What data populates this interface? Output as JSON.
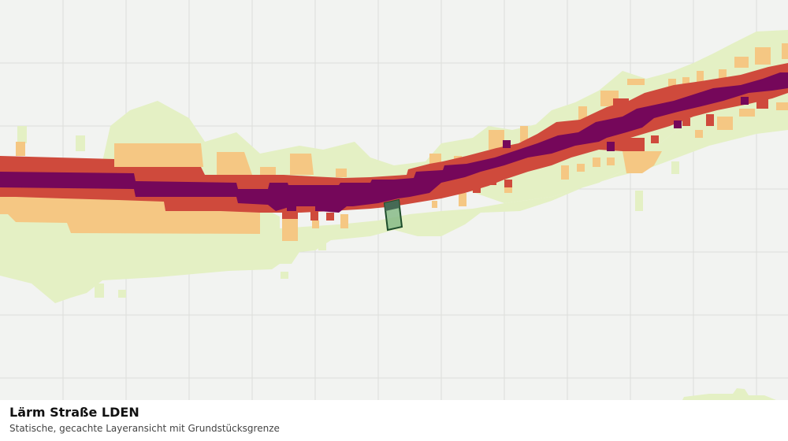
{
  "map": {
    "layer_title": "Lärm Straße LDEN",
    "layer_subtitle": "Statische, gecachte Layeransicht mit Grundstücksgrenze",
    "colors": {
      "background": "#f2f3f1",
      "grid": "#dcdedb",
      "noise_low": "#e4f0c4",
      "noise_medium": "#f5c783",
      "noise_high": "#cf4a3c",
      "noise_very_high": "#75075a",
      "parcel_fill": "#88bb88",
      "parcel_border": "#1e4d2b"
    }
  }
}
